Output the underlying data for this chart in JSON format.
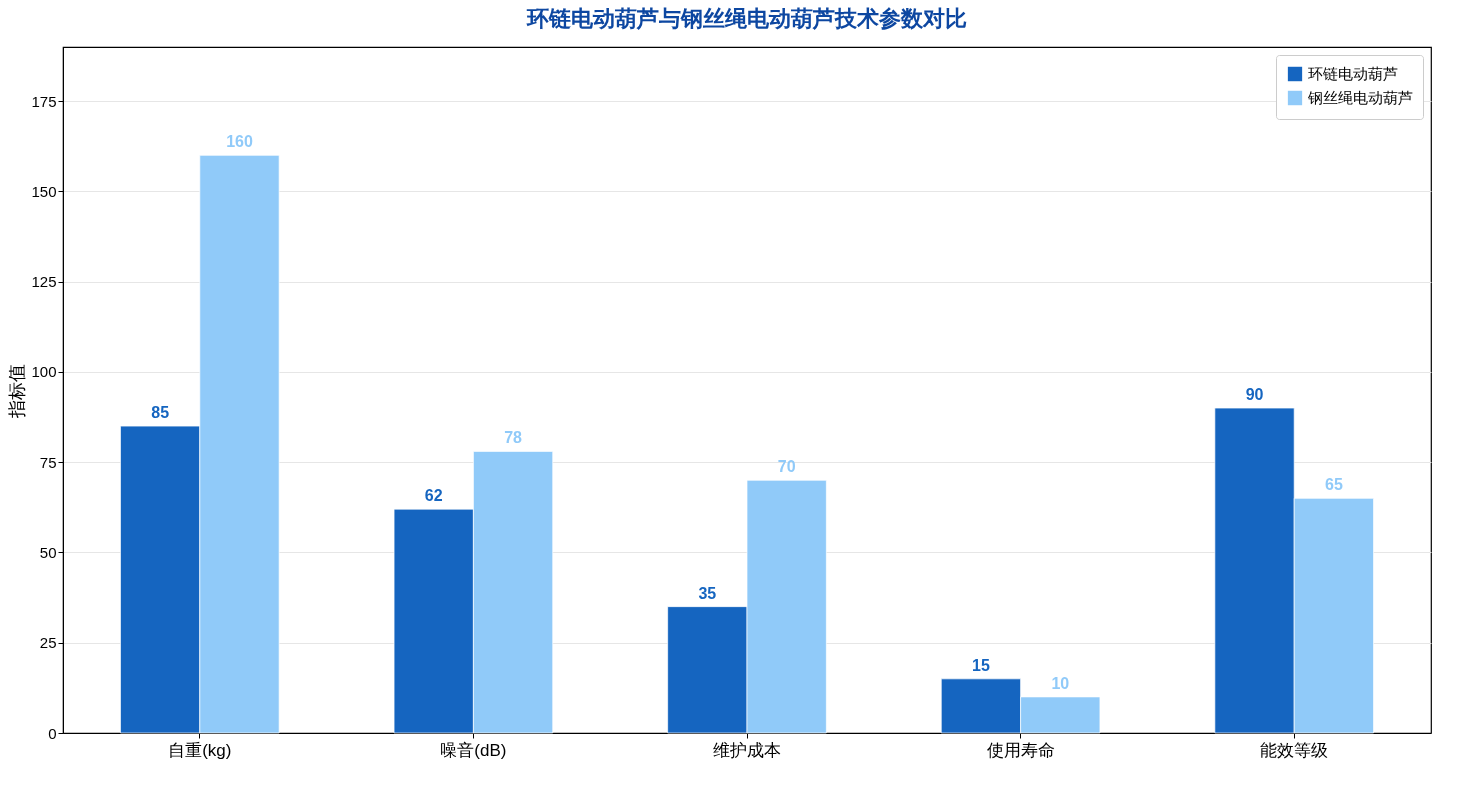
{
  "chart_data": {
    "type": "bar",
    "title": "环链电动葫芦与钢丝绳电动葫芦技术参数对比",
    "ylabel": "指标值",
    "categories": [
      "自重(kg)",
      "噪音(dB)",
      "维护成本",
      "使用寿命",
      "能效等级"
    ],
    "series": [
      {
        "name": "环链电动葫芦",
        "color": "#1565c0",
        "values": [
          85,
          62,
          35,
          15,
          90
        ]
      },
      {
        "name": "钢丝绳电动葫芦",
        "color": "#90caf9",
        "values": [
          160,
          78,
          70,
          10,
          65
        ]
      }
    ],
    "ylim": [
      0,
      190
    ],
    "yticks": [
      0,
      25,
      50,
      75,
      100,
      125,
      150,
      175
    ],
    "grid": "y",
    "legend": "top right",
    "data_labels": true
  }
}
